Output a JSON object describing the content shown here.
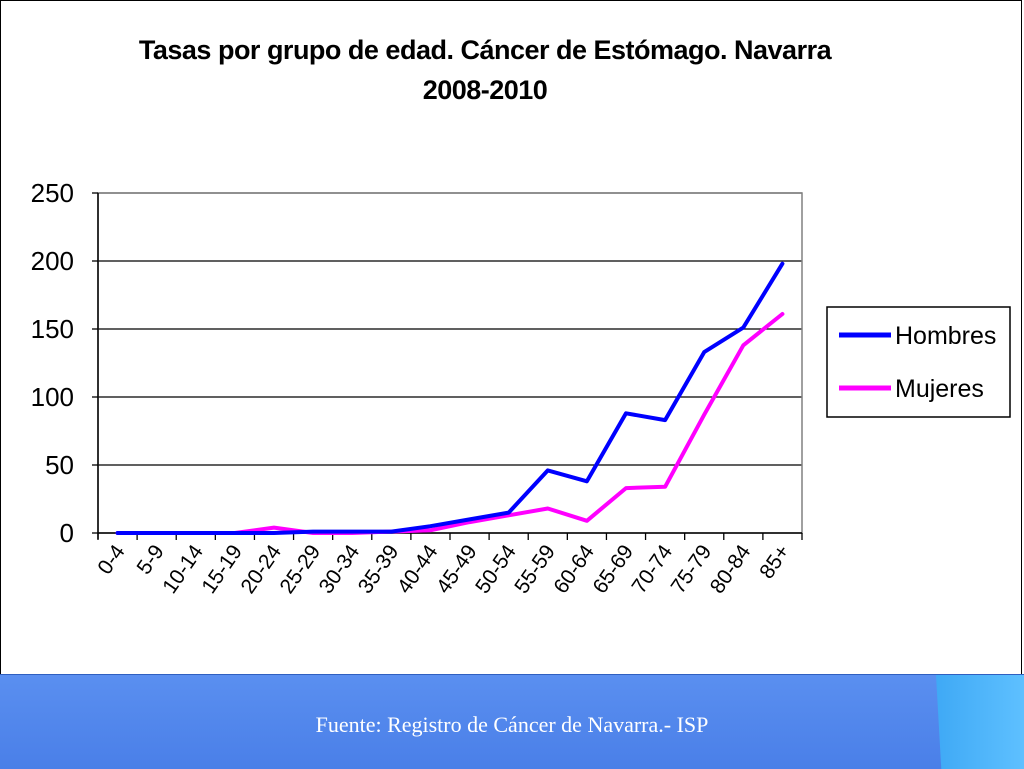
{
  "footer": {
    "source": "Fuente: Registro de Cáncer de Navarra.- ISP"
  },
  "chart_data": {
    "type": "line",
    "title": "Tasas por grupo de edad. Cáncer de Estómago. Navarra",
    "subtitle": "2008-2010",
    "xlabel": "",
    "ylabel": "",
    "ylim": [
      0,
      250
    ],
    "yticks": [
      "0",
      "50",
      "100",
      "150",
      "200",
      "250"
    ],
    "grid": true,
    "legend_position": "right",
    "categories": [
      "0-4",
      "5-9",
      "10-14",
      "15-19",
      "20-24",
      "25-29",
      "30-34",
      "35-39",
      "40-44",
      "45-49",
      "50-54",
      "55-59",
      "60-64",
      "65-69",
      "70-74",
      "75-79",
      "80-84",
      "85+"
    ],
    "series": [
      {
        "name": "Hombres",
        "color": "#0000ff",
        "values": [
          0,
          0,
          0,
          0,
          0,
          1,
          1,
          1,
          5,
          10,
          15,
          46,
          38,
          88,
          83,
          133,
          151,
          198
        ]
      },
      {
        "name": "Mujeres",
        "color": "#ff00ff",
        "values": [
          0,
          0,
          0,
          0,
          4,
          0,
          0,
          1,
          2,
          8,
          13,
          18,
          9,
          33,
          34,
          87,
          138,
          161
        ]
      }
    ]
  }
}
